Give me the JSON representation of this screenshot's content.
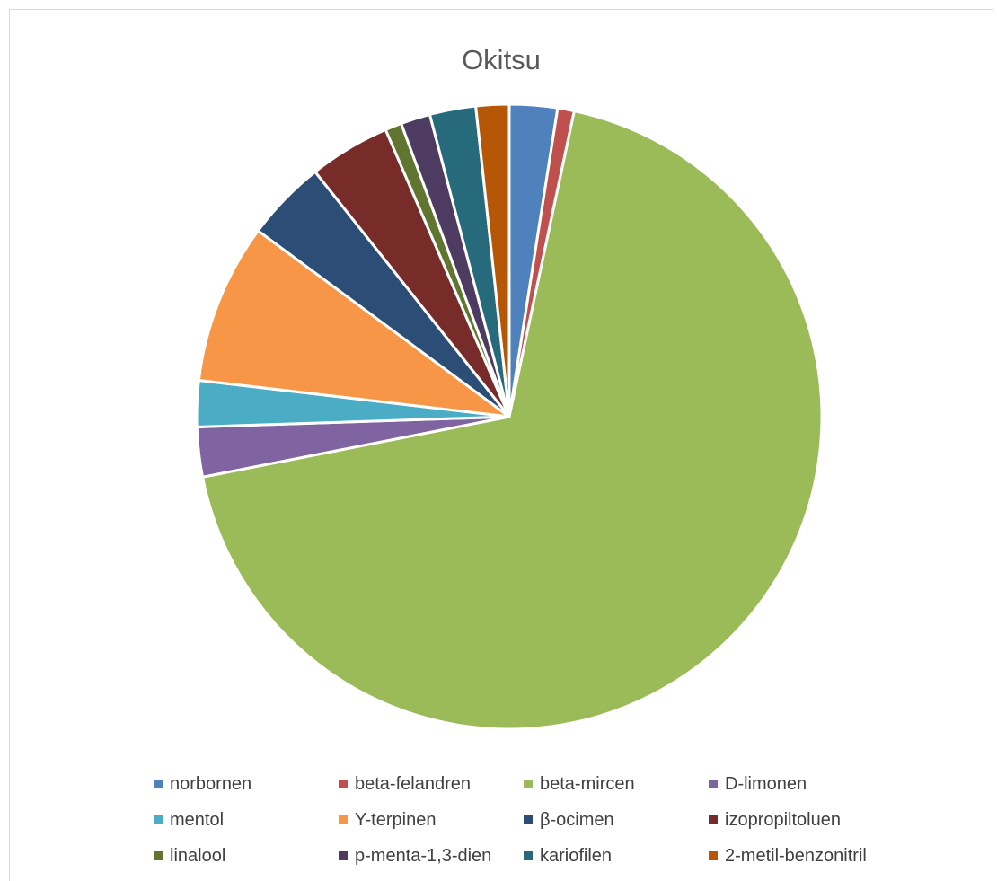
{
  "chart_data": {
    "type": "pie",
    "title": "Okitsu",
    "legend_position": "bottom",
    "categories": [
      "norbornen",
      "beta-felandren",
      "beta-mircen",
      "D-limonen",
      "mentol",
      "Υ-terpinen",
      "β-ocimen",
      "izopropiltoluen",
      "linalool",
      "p-menta-1,3-dien",
      "kariofilen",
      "2-metil-benzonitril"
    ],
    "values": [
      2.6,
      0.9,
      72.0,
      2.7,
      2.5,
      8.7,
      4.4,
      4.4,
      0.9,
      1.6,
      2.5,
      1.8
    ],
    "colors": [
      "#4f81bd",
      "#c0504d",
      "#9bbb59",
      "#8064a2",
      "#4bacc6",
      "#f79646",
      "#2c4d75",
      "#772c2a",
      "#5f7530",
      "#4d3b62",
      "#276a7c",
      "#b65708"
    ]
  }
}
